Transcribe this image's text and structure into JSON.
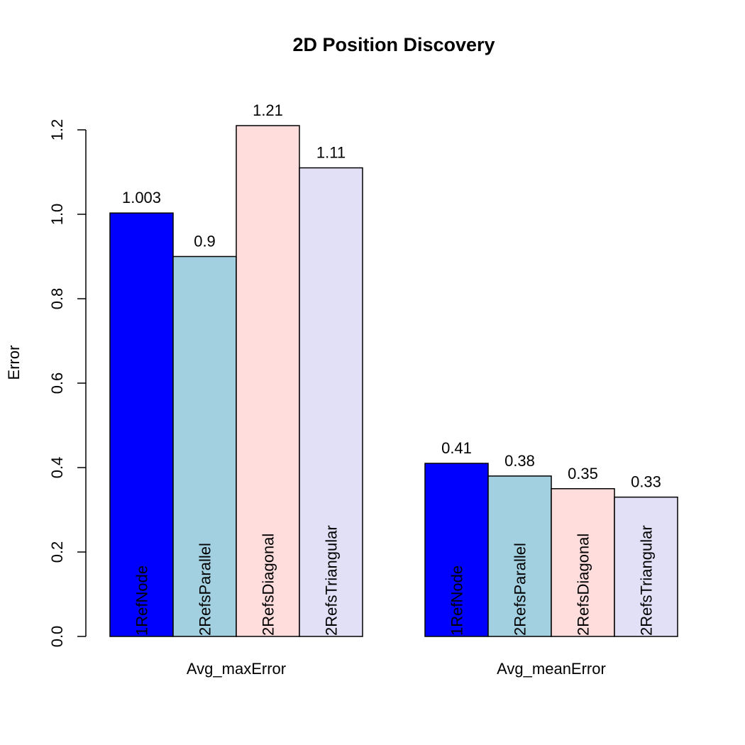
{
  "chart_data": {
    "type": "bar",
    "title": "2D Position Discovery",
    "ylabel": "Error",
    "xlabel": "",
    "ylim": [
      0,
      1.2
    ],
    "yticks": [
      0.0,
      0.2,
      0.4,
      0.6,
      0.8,
      1.0,
      1.2
    ],
    "ytick_labels": [
      "0.0",
      "0.2",
      "0.4",
      "0.6",
      "0.8",
      "1.0",
      "1.2"
    ],
    "grid": false,
    "legend": "none",
    "categories": [
      "Avg_maxError",
      "Avg_meanError"
    ],
    "series": [
      {
        "name": "1RefNode",
        "color": "#0000ff",
        "values": [
          1.003,
          0.41
        ],
        "value_labels": [
          "1.003",
          "0.41"
        ]
      },
      {
        "name": "2RefsParallel",
        "color": "#a2d0e0",
        "values": [
          0.9,
          0.38
        ],
        "value_labels": [
          "0.9",
          "0.38"
        ]
      },
      {
        "name": "2RefsDiagonal",
        "color": "#ffdddd",
        "values": [
          1.21,
          0.35
        ],
        "value_labels": [
          "1.21",
          "0.35"
        ]
      },
      {
        "name": "2RefsTriangular",
        "color": "#e1e0f7",
        "values": [
          1.11,
          0.33
        ],
        "value_labels": [
          "1.11",
          "0.33"
        ]
      }
    ]
  }
}
